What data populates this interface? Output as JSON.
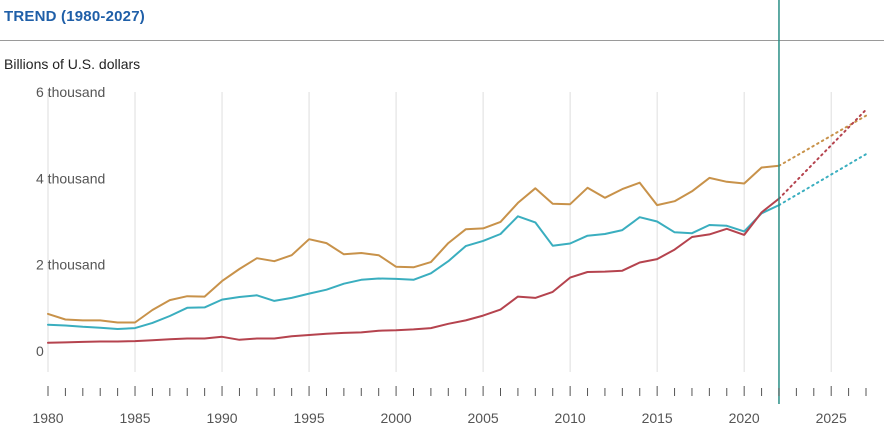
{
  "header": {
    "title": "TREND (1980-2027)",
    "unit_label": "Billions of U.S. dollars"
  },
  "chart_data": {
    "type": "line",
    "title": "TREND (1980-2027)",
    "ylabel": "Billions of U.S. dollars",
    "xlabel": "",
    "xlim": [
      1980,
      2027
    ],
    "ylim": [
      -1000,
      6000
    ],
    "y_ticks": [
      {
        "value": 0,
        "label": "0"
      },
      {
        "value": 2000,
        "label": "2 thousand"
      },
      {
        "value": 4000,
        "label": "4 thousand"
      },
      {
        "value": 6000,
        "label": "6 thousand"
      }
    ],
    "x_ticks": [
      1980,
      1985,
      1990,
      1995,
      2000,
      2005,
      2010,
      2015,
      2020,
      2025
    ],
    "grid": "vertical",
    "projection_marker_year": 2022,
    "marker_color": "#2a8f86",
    "series": [
      {
        "color": "#c8924a",
        "x": [
          1980,
          1981,
          1982,
          1983,
          1984,
          1985,
          1986,
          1987,
          1988,
          1989,
          1990,
          1991,
          1992,
          1993,
          1994,
          1995,
          1996,
          1997,
          1998,
          1999,
          2000,
          2001,
          2002,
          2003,
          2004,
          2005,
          2006,
          2007,
          2008,
          2009,
          2010,
          2011,
          2012,
          2013,
          2014,
          2015,
          2016,
          2017,
          2018,
          2019,
          2020,
          2021,
          2022
        ],
        "values": [
          860,
          730,
          710,
          710,
          660,
          660,
          950,
          1180,
          1270,
          1260,
          1620,
          1900,
          2150,
          2080,
          2220,
          2590,
          2500,
          2240,
          2270,
          2220,
          1950,
          1940,
          2060,
          2500,
          2820,
          2840,
          2990,
          3430,
          3770,
          3410,
          3400,
          3780,
          3550,
          3750,
          3900,
          3380,
          3470,
          3700,
          4010,
          3920,
          3880,
          4250,
          4290
        ],
        "projected_x": [
          2022,
          2027
        ],
        "projected_values": [
          4290,
          5450
        ]
      },
      {
        "color": "#3aaebf",
        "x": [
          1980,
          1981,
          1982,
          1983,
          1984,
          1985,
          1986,
          1987,
          1988,
          1989,
          1990,
          1991,
          1992,
          1993,
          1994,
          1995,
          1996,
          1997,
          1998,
          1999,
          2000,
          2001,
          2002,
          2003,
          2004,
          2005,
          2006,
          2007,
          2008,
          2009,
          2010,
          2011,
          2012,
          2013,
          2014,
          2015,
          2016,
          2017,
          2018,
          2019,
          2020,
          2021,
          2022
        ],
        "values": [
          610,
          590,
          560,
          540,
          510,
          530,
          650,
          810,
          1000,
          1010,
          1190,
          1250,
          1290,
          1160,
          1230,
          1330,
          1420,
          1560,
          1650,
          1680,
          1670,
          1650,
          1800,
          2080,
          2430,
          2550,
          2710,
          3120,
          2980,
          2440,
          2490,
          2670,
          2710,
          2800,
          3100,
          3000,
          2750,
          2730,
          2920,
          2900,
          2770,
          3190,
          3380
        ],
        "projected_x": [
          2022,
          2027
        ],
        "projected_values": [
          3380,
          4560
        ]
      },
      {
        "color": "#b5434e",
        "x": [
          1980,
          1981,
          1982,
          1983,
          1984,
          1985,
          1986,
          1987,
          1988,
          1989,
          1990,
          1991,
          1992,
          1993,
          1994,
          1995,
          1996,
          1997,
          1998,
          1999,
          2000,
          2001,
          2002,
          2003,
          2004,
          2005,
          2006,
          2007,
          2008,
          2009,
          2010,
          2011,
          2012,
          2013,
          2014,
          2015,
          2016,
          2017,
          2018,
          2019,
          2020,
          2021,
          2022
        ],
        "values": [
          190,
          200,
          210,
          220,
          220,
          230,
          250,
          270,
          290,
          290,
          330,
          260,
          290,
          290,
          340,
          370,
          400,
          420,
          430,
          470,
          480,
          500,
          530,
          630,
          710,
          820,
          960,
          1260,
          1230,
          1370,
          1700,
          1830,
          1840,
          1860,
          2050,
          2130,
          2350,
          2640,
          2700,
          2830,
          2690,
          3210,
          3530
        ],
        "projected_x": [
          2022,
          2027
        ],
        "projected_values": [
          3530,
          5590
        ]
      }
    ]
  }
}
